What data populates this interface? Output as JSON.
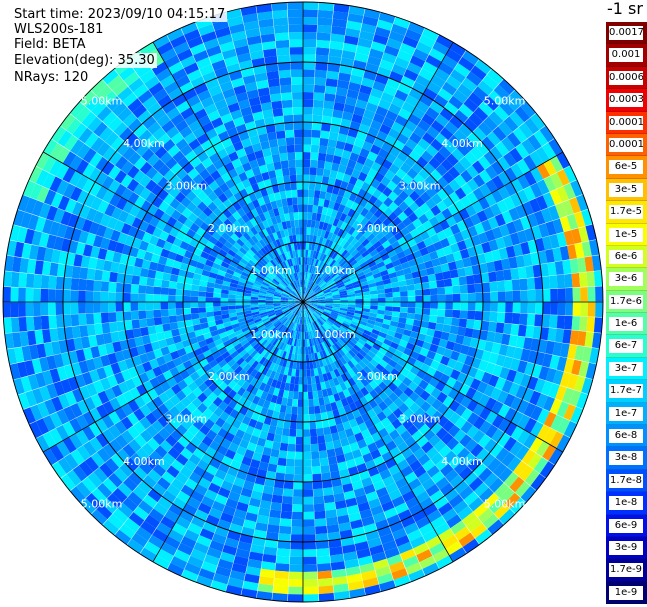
{
  "header": {
    "start_time": "Start time: 2023/09/10 04:15:17",
    "device": "WLS200s-181",
    "field": "Field: BETA",
    "elevation": "Elevation(deg): 35.30",
    "nrays": "NRays: 120"
  },
  "colorbar": {
    "unit": "-1 sr",
    "ticks": [
      {
        "label": "0.0017",
        "color": "#800000"
      },
      {
        "label": "0.001",
        "color": "#a00000"
      },
      {
        "label": "0.0006",
        "color": "#c80000"
      },
      {
        "label": "0.0003",
        "color": "#f00000"
      },
      {
        "label": "0.00017",
        "color": "#ff3000"
      },
      {
        "label": "0.0001",
        "color": "#ff6000"
      },
      {
        "label": "6e-5",
        "color": "#ff9000"
      },
      {
        "label": "3e-5",
        "color": "#ffc000"
      },
      {
        "label": "1.7e-5",
        "color": "#ffe800"
      },
      {
        "label": "1e-5",
        "color": "#f8ff00"
      },
      {
        "label": "6e-6",
        "color": "#d0ff20"
      },
      {
        "label": "3e-6",
        "color": "#a0ff58"
      },
      {
        "label": "1.7e-6",
        "color": "#78ff80"
      },
      {
        "label": "1e-6",
        "color": "#50ffa8"
      },
      {
        "label": "6e-7",
        "color": "#28ffd0"
      },
      {
        "label": "3e-7",
        "color": "#00f0ff"
      },
      {
        "label": "1.7e-7",
        "color": "#00d0ff"
      },
      {
        "label": "1e-7",
        "color": "#00b0ff"
      },
      {
        "label": "6e-8",
        "color": "#0090ff"
      },
      {
        "label": "3e-8",
        "color": "#0070ff"
      },
      {
        "label": "1.7e-8",
        "color": "#0050ff"
      },
      {
        "label": "1e-8",
        "color": "#0030ff"
      },
      {
        "label": "6e-9",
        "color": "#0010e8"
      },
      {
        "label": "3e-9",
        "color": "#0000c0"
      },
      {
        "label": "1.7e-9",
        "color": "#000098"
      },
      {
        "label": "1e-9",
        "color": "#000070"
      }
    ]
  },
  "chart_data": {
    "type": "heatmap",
    "projection": "polar",
    "field": "BETA",
    "elevation_deg": 35.3,
    "n_rays": 120,
    "max_range_km": 5.0,
    "range_rings_km": [
      1,
      2,
      3,
      4,
      5
    ],
    "range_labels": [
      "1.00km",
      "2.00km",
      "3.00km",
      "4.00km",
      "5.00km"
    ],
    "azimuth_spokes_deg": [
      0,
      30,
      60,
      90,
      120,
      150,
      180,
      210,
      240,
      270,
      300,
      330
    ],
    "typical_value_band": [
      "1.7e-8",
      "3e-7"
    ],
    "enhanced_band": {
      "range_km": [
        4.5,
        4.9
      ],
      "azimuth_span_deg": [
        60,
        190
      ],
      "value_band": [
        "1e-6",
        "6e-5"
      ]
    }
  }
}
